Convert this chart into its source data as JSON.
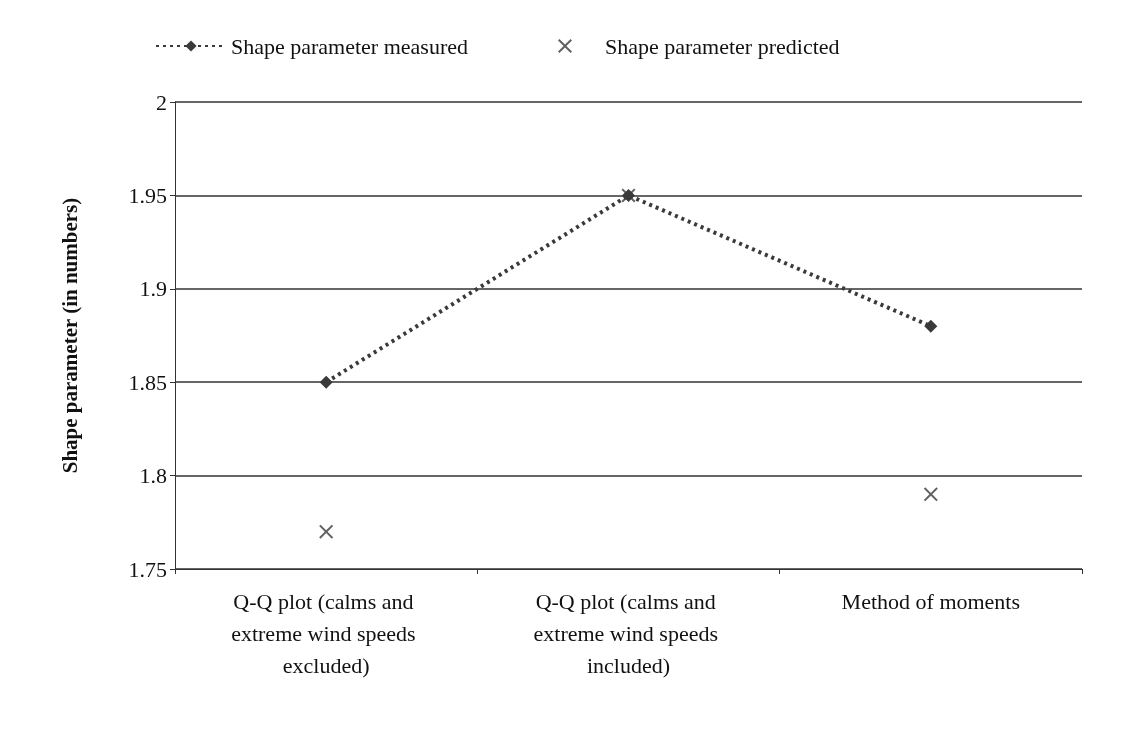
{
  "chart_data": {
    "type": "line",
    "ylabel": "Shape parameter (in numbers)",
    "categories": [
      "Q-Q plot (calms and extreme wind speeds excluded)",
      "Q-Q plot (calms and extreme wind speeds included)",
      "Method of moments"
    ],
    "series": [
      {
        "name": "Shape parameter measured",
        "color": "#3a3a3a",
        "marker": "diamond",
        "line_style": "dotted",
        "values": [
          1.85,
          1.95,
          1.88
        ]
      },
      {
        "name": "Shape parameter predicted",
        "type": "scatter",
        "color": "#3a3a3a",
        "marker": "cross",
        "values": [
          1.77,
          1.95,
          1.79
        ]
      }
    ],
    "ylim": [
      1.75,
      2
    ],
    "yticks": [
      1.75,
      1.8,
      1.85,
      1.9,
      1.95,
      2
    ],
    "grid": "y",
    "legend": "top left"
  }
}
